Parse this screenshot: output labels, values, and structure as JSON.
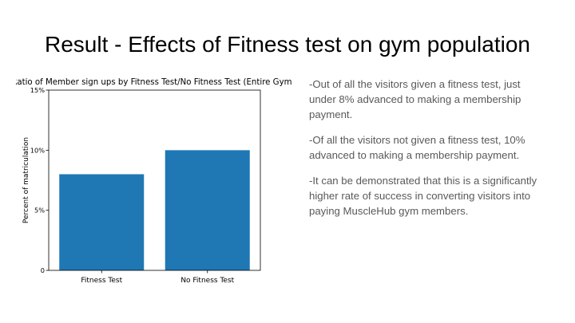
{
  "slide": {
    "title": "Result - Effects of Fitness test on gym population"
  },
  "chart_data": {
    "type": "bar",
    "title": "Ratio of Member sign ups by Fitness Test/No Fitness Test (Entire Gym)",
    "xlabel": "",
    "ylabel": "Percent of matriculation",
    "categories": [
      "Fitness Test",
      "No Fitness Test"
    ],
    "values": [
      0.08,
      0.1
    ],
    "ylim": [
      0,
      0.15
    ],
    "yticks": [
      0,
      0.05,
      0.1,
      0.15
    ],
    "ytick_labels": [
      "0",
      "5%",
      "10%",
      "15%"
    ],
    "bar_color": "#1f77b4",
    "grid": false
  },
  "notes": [
    "-Out of all the visitors given a fitness test, just under 8% advanced to making a membership payment.",
    "-Of all the visitors not given a fitness test, 10% advanced to making a membership payment.",
    "-It can be demonstrated that this is a significantly higher rate of success in converting visitors into paying MuscleHub gym members."
  ]
}
